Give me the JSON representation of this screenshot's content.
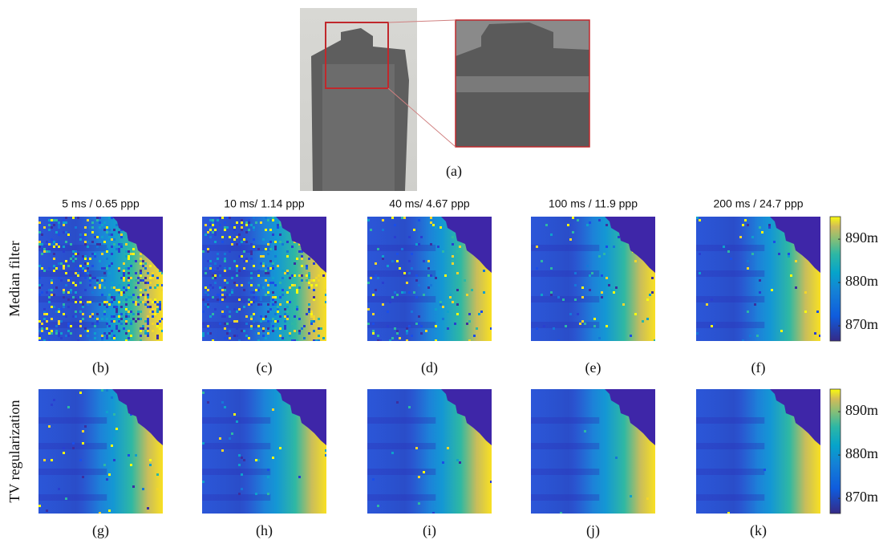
{
  "figure": {
    "top": {
      "label": "(a)"
    },
    "columns": [
      "5 ms / 0.65 ppp",
      "10 ms/ 1.14 ppp",
      "40 ms/ 4.67 ppp",
      "100 ms / 11.9 ppp",
      "200 ms / 24.7 ppp"
    ],
    "rows": [
      {
        "title": "Median filter",
        "labels": [
          "(b)",
          "(c)",
          "(d)",
          "(e)",
          "(f)"
        ]
      },
      {
        "title": "TV regularization",
        "labels": [
          "(g)",
          "(h)",
          "(i)",
          "(j)",
          "(k)"
        ]
      }
    ],
    "colorbar": {
      "range": [
        866.5,
        895.2
      ],
      "ticks": [
        {
          "value": 870,
          "label": "870m"
        },
        {
          "value": 880,
          "label": "880m"
        },
        {
          "value": 890,
          "label": "890m"
        }
      ]
    }
  }
}
